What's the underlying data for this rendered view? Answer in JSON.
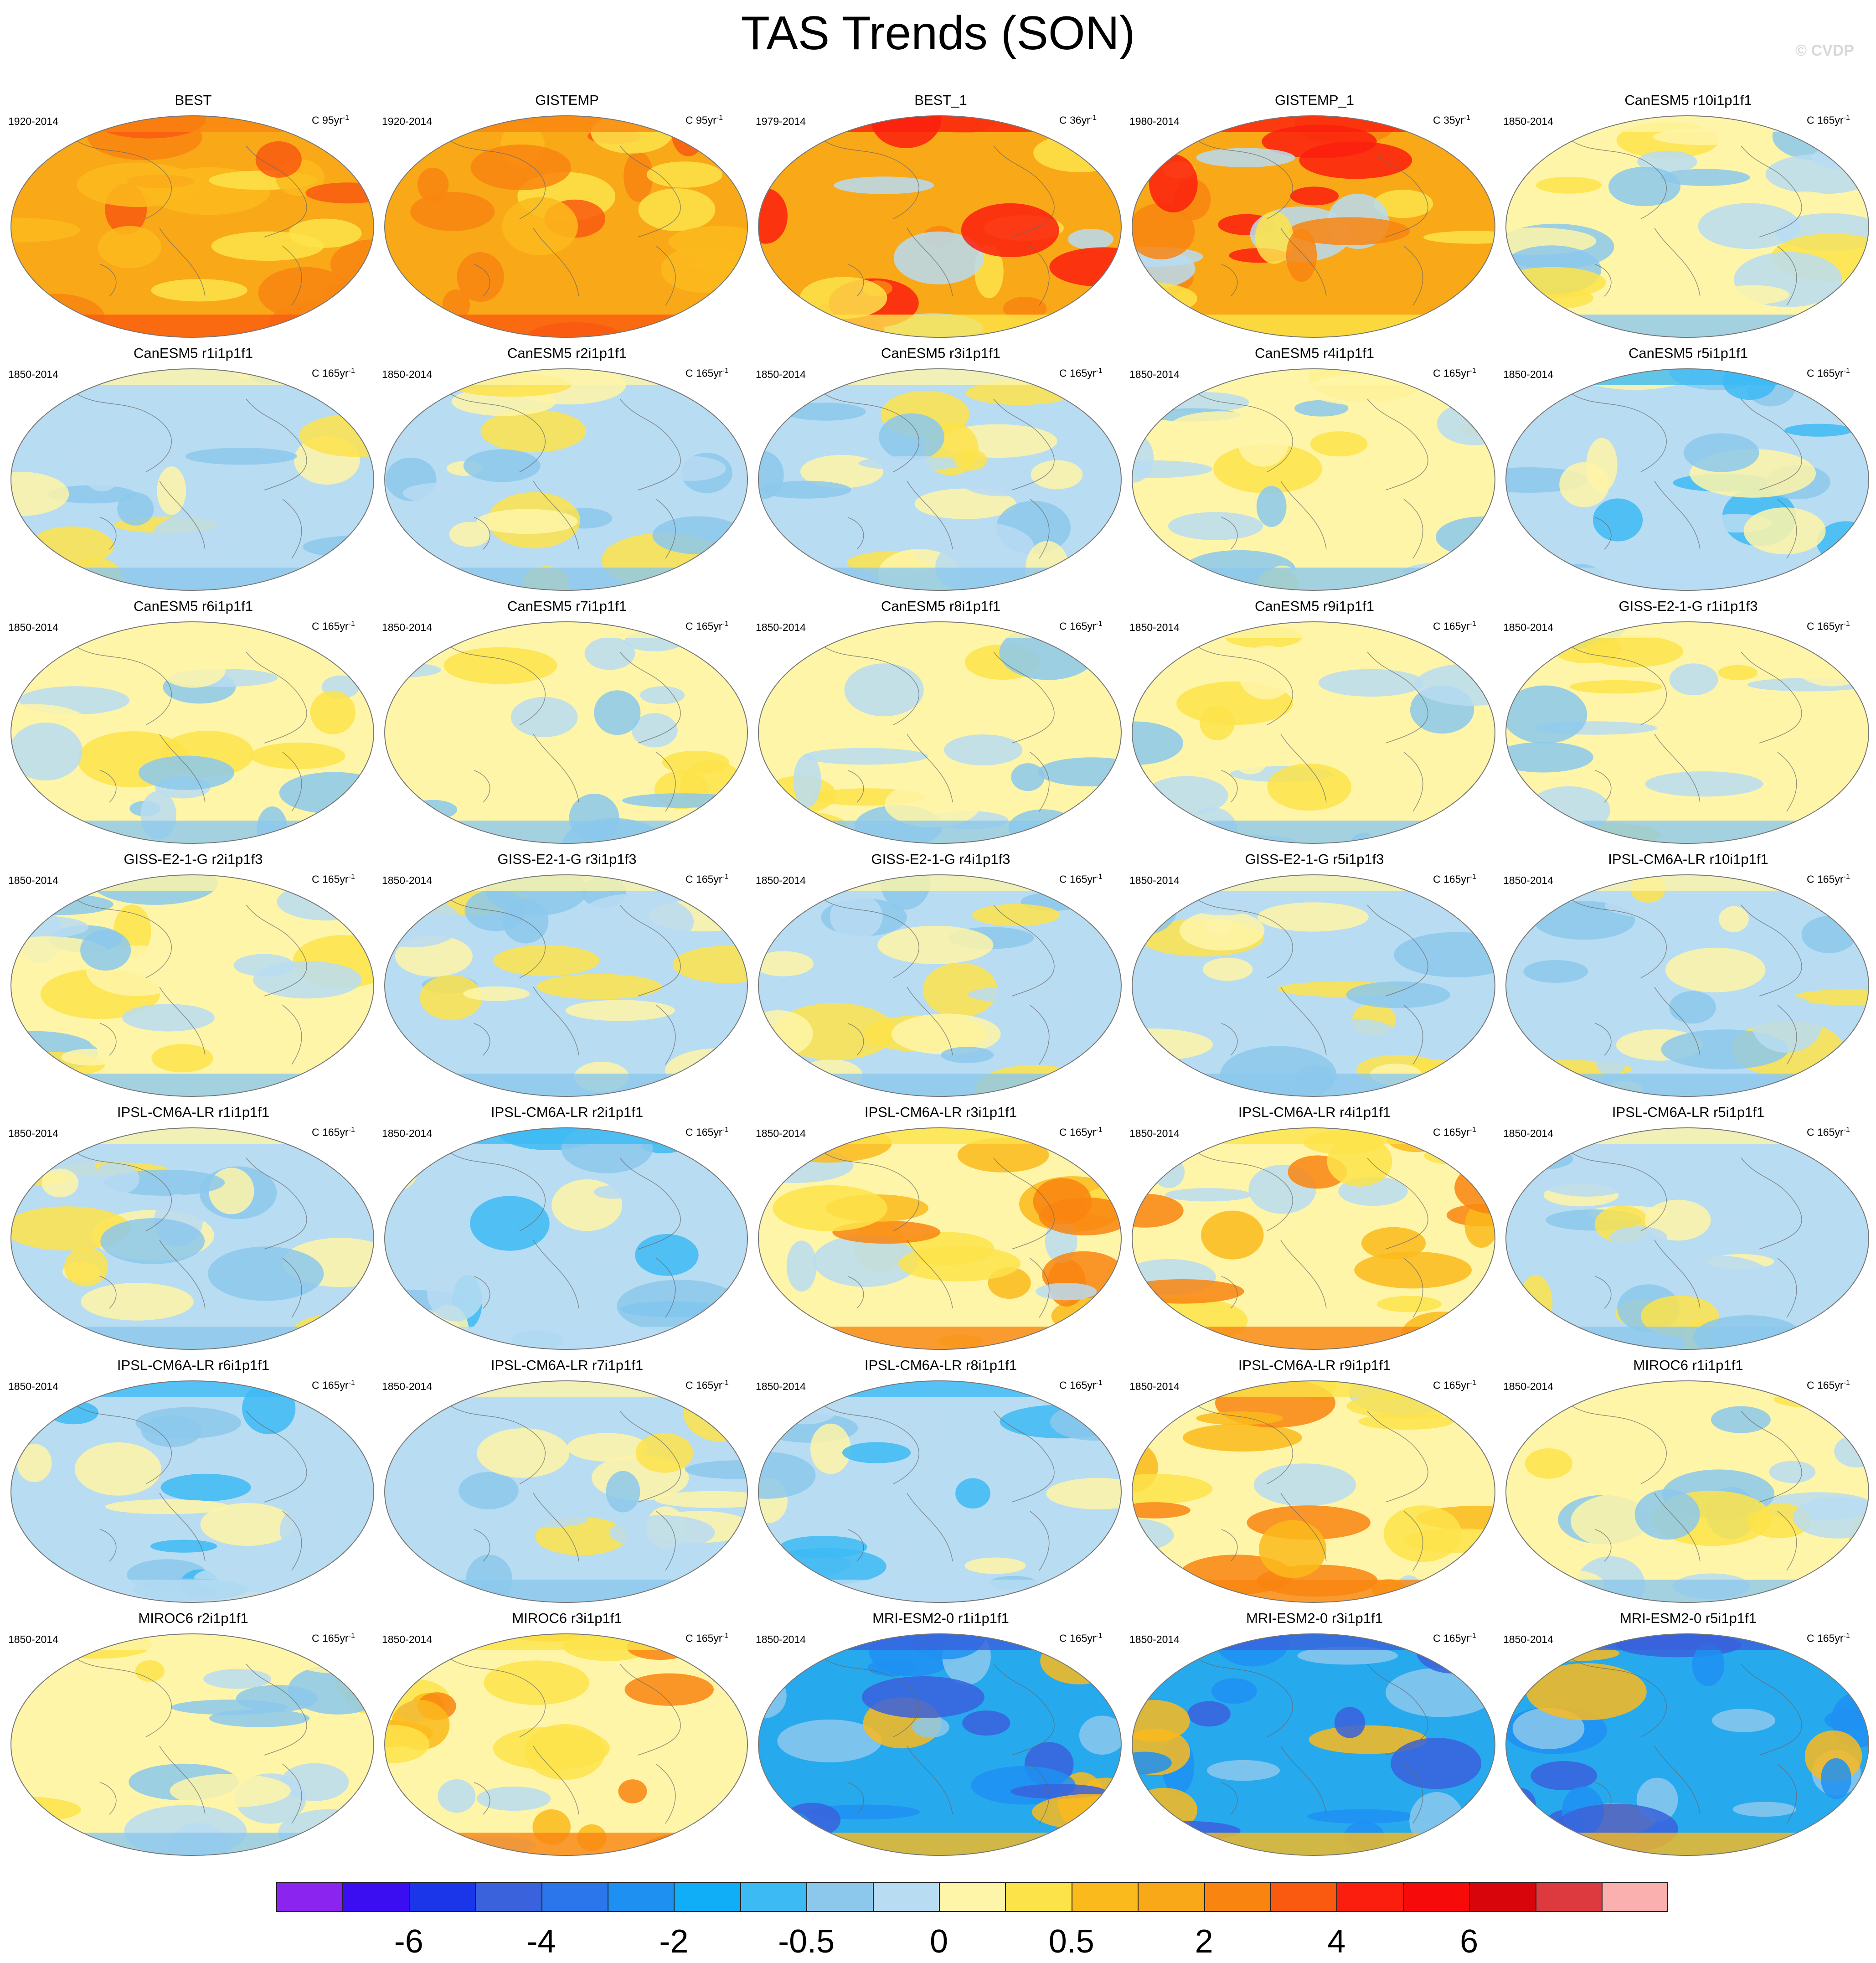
{
  "title": "TAS Trends (SON)",
  "credit": "© CVDP",
  "panels": [
    {
      "title": "BEST",
      "period": "1920-2014",
      "units_prefix": "C 95yr",
      "units_exp": "-1",
      "bg": "#f9a818",
      "style": "warm-obs"
    },
    {
      "title": "GISTEMP",
      "period": "1920-2014",
      "units_prefix": "C 95yr",
      "units_exp": "-1",
      "bg": "#f9a818",
      "style": "warm-obs"
    },
    {
      "title": "BEST_1",
      "period": "1979-2014",
      "units_prefix": "C 36yr",
      "units_exp": "-1",
      "bg": "#f9a818",
      "style": "warm-recent"
    },
    {
      "title": "GISTEMP_1",
      "period": "1980-2014",
      "units_prefix": "C 35yr",
      "units_exp": "-1",
      "bg": "#f9a818",
      "style": "warm-recent"
    },
    {
      "title": "CanESM5 r10i1p1f1",
      "period": "1850-2014",
      "units_prefix": "C 165yr",
      "units_exp": "-1",
      "bg": "#fef5a8",
      "style": "mixed"
    },
    {
      "title": "CanESM5 r1i1p1f1",
      "period": "1850-2014",
      "units_prefix": "C 165yr",
      "units_exp": "-1",
      "bg": "#b8dcf2",
      "style": "mixed"
    },
    {
      "title": "CanESM5 r2i1p1f1",
      "period": "1850-2014",
      "units_prefix": "C 165yr",
      "units_exp": "-1",
      "bg": "#b8dcf2",
      "style": "mixed"
    },
    {
      "title": "CanESM5 r3i1p1f1",
      "period": "1850-2014",
      "units_prefix": "C 165yr",
      "units_exp": "-1",
      "bg": "#b8dcf2",
      "style": "mixed"
    },
    {
      "title": "CanESM5 r4i1p1f1",
      "period": "1850-2014",
      "units_prefix": "C 165yr",
      "units_exp": "-1",
      "bg": "#fef5a8",
      "style": "mixed"
    },
    {
      "title": "CanESM5 r5i1p1f1",
      "period": "1850-2014",
      "units_prefix": "C 165yr",
      "units_exp": "-1",
      "bg": "#b8dcf2",
      "style": "cool"
    },
    {
      "title": "CanESM5 r6i1p1f1",
      "period": "1850-2014",
      "units_prefix": "C 165yr",
      "units_exp": "-1",
      "bg": "#fef5a8",
      "style": "mixed"
    },
    {
      "title": "CanESM5 r7i1p1f1",
      "period": "1850-2014",
      "units_prefix": "C 165yr",
      "units_exp": "-1",
      "bg": "#fef5a8",
      "style": "mixed"
    },
    {
      "title": "CanESM5 r8i1p1f1",
      "period": "1850-2014",
      "units_prefix": "C 165yr",
      "units_exp": "-1",
      "bg": "#fef5a8",
      "style": "mixed"
    },
    {
      "title": "CanESM5 r9i1p1f1",
      "period": "1850-2014",
      "units_prefix": "C 165yr",
      "units_exp": "-1",
      "bg": "#fef5a8",
      "style": "mixed"
    },
    {
      "title": "GISS-E2-1-G r1i1p1f3",
      "period": "1850-2014",
      "units_prefix": "C 165yr",
      "units_exp": "-1",
      "bg": "#fef5a8",
      "style": "mixed"
    },
    {
      "title": "GISS-E2-1-G r2i1p1f3",
      "period": "1850-2014",
      "units_prefix": "C 165yr",
      "units_exp": "-1",
      "bg": "#fef5a8",
      "style": "mixed"
    },
    {
      "title": "GISS-E2-1-G r3i1p1f3",
      "period": "1850-2014",
      "units_prefix": "C 165yr",
      "units_exp": "-1",
      "bg": "#b8dcf2",
      "style": "mixed"
    },
    {
      "title": "GISS-E2-1-G r4i1p1f3",
      "period": "1850-2014",
      "units_prefix": "C 165yr",
      "units_exp": "-1",
      "bg": "#b8dcf2",
      "style": "mixed"
    },
    {
      "title": "GISS-E2-1-G r5i1p1f3",
      "period": "1850-2014",
      "units_prefix": "C 165yr",
      "units_exp": "-1",
      "bg": "#b8dcf2",
      "style": "mixed"
    },
    {
      "title": "IPSL-CM6A-LR r10i1p1f1",
      "period": "1850-2014",
      "units_prefix": "C 165yr",
      "units_exp": "-1",
      "bg": "#b8dcf2",
      "style": "mixed"
    },
    {
      "title": "IPSL-CM6A-LR r1i1p1f1",
      "period": "1850-2014",
      "units_prefix": "C 165yr",
      "units_exp": "-1",
      "bg": "#b8dcf2",
      "style": "mixed"
    },
    {
      "title": "IPSL-CM6A-LR r2i1p1f1",
      "period": "1850-2014",
      "units_prefix": "C 165yr",
      "units_exp": "-1",
      "bg": "#b8dcf2",
      "style": "cool"
    },
    {
      "title": "IPSL-CM6A-LR r3i1p1f1",
      "period": "1850-2014",
      "units_prefix": "C 165yr",
      "units_exp": "-1",
      "bg": "#fef5a8",
      "style": "warm-model"
    },
    {
      "title": "IPSL-CM6A-LR r4i1p1f1",
      "period": "1850-2014",
      "units_prefix": "C 165yr",
      "units_exp": "-1",
      "bg": "#fef5a8",
      "style": "warm-model"
    },
    {
      "title": "IPSL-CM6A-LR r5i1p1f1",
      "period": "1850-2014",
      "units_prefix": "C 165yr",
      "units_exp": "-1",
      "bg": "#b8dcf2",
      "style": "mixed"
    },
    {
      "title": "IPSL-CM6A-LR r6i1p1f1",
      "period": "1850-2014",
      "units_prefix": "C 165yr",
      "units_exp": "-1",
      "bg": "#b8dcf2",
      "style": "cool"
    },
    {
      "title": "IPSL-CM6A-LR r7i1p1f1",
      "period": "1850-2014",
      "units_prefix": "C 165yr",
      "units_exp": "-1",
      "bg": "#b8dcf2",
      "style": "mixed"
    },
    {
      "title": "IPSL-CM6A-LR r8i1p1f1",
      "period": "1850-2014",
      "units_prefix": "C 165yr",
      "units_exp": "-1",
      "bg": "#b8dcf2",
      "style": "cool"
    },
    {
      "title": "IPSL-CM6A-LR r9i1p1f1",
      "period": "1850-2014",
      "units_prefix": "C 165yr",
      "units_exp": "-1",
      "bg": "#fef5a8",
      "style": "warm-model"
    },
    {
      "title": "MIROC6 r1i1p1f1",
      "period": "1850-2014",
      "units_prefix": "C 165yr",
      "units_exp": "-1",
      "bg": "#fef5a8",
      "style": "mixed"
    },
    {
      "title": "MIROC6 r2i1p1f1",
      "period": "1850-2014",
      "units_prefix": "C 165yr",
      "units_exp": "-1",
      "bg": "#fef5a8",
      "style": "mixed"
    },
    {
      "title": "MIROC6 r3i1p1f1",
      "period": "1850-2014",
      "units_prefix": "C 165yr",
      "units_exp": "-1",
      "bg": "#fef5a8",
      "style": "warm-model"
    },
    {
      "title": "MRI-ESM2-0 r1i1p1f1",
      "period": "1850-2014",
      "units_prefix": "C 165yr",
      "units_exp": "-1",
      "bg": "#27a9ee",
      "style": "deep-cool"
    },
    {
      "title": "MRI-ESM2-0 r3i1p1f1",
      "period": "1850-2014",
      "units_prefix": "C 165yr",
      "units_exp": "-1",
      "bg": "#27a9ee",
      "style": "deep-cool"
    },
    {
      "title": "MRI-ESM2-0 r5i1p1f1",
      "period": "1850-2014",
      "units_prefix": "C 165yr",
      "units_exp": "-1",
      "bg": "#27a9ee",
      "style": "deep-cool"
    }
  ],
  "colorbar": {
    "colors": [
      "#8a24ee",
      "#3a0ef0",
      "#1a36e8",
      "#3a62dc",
      "#2a76ea",
      "#1e90f2",
      "#10aef6",
      "#3cbaf4",
      "#8cc8ec",
      "#b8dcf2",
      "#fef5a8",
      "#fde34a",
      "#fbba1c",
      "#f9a818",
      "#f98510",
      "#f95a10",
      "#fb1e0e",
      "#f70a0a",
      "#d8060a",
      "#dd3a3f",
      "#fbb0b0"
    ],
    "labels": [
      {
        "text": "-6",
        "boundary": 2
      },
      {
        "text": "-4",
        "boundary": 4
      },
      {
        "text": "-2",
        "boundary": 6
      },
      {
        "text": "-0.5",
        "boundary": 8
      },
      {
        "text": "0",
        "boundary": 10
      },
      {
        "text": "0.5",
        "boundary": 12
      },
      {
        "text": "2",
        "boundary": 14
      },
      {
        "text": "4",
        "boundary": 16
      },
      {
        "text": "6",
        "boundary": 18
      }
    ]
  }
}
